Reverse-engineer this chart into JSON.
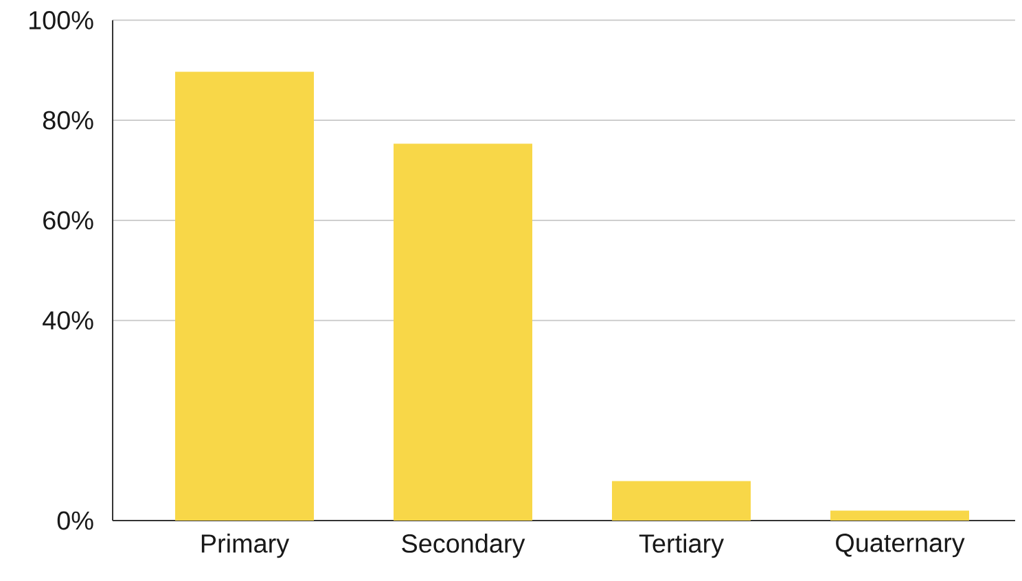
{
  "chart_data": {
    "type": "bar",
    "categories": [
      "Primary",
      "Secondary",
      "Tertiary",
      "Quaternary"
    ],
    "values": [
      89.7,
      75.3,
      7.9,
      2
    ],
    "color": "#f8d748",
    "ylim": [
      0,
      100
    ],
    "yticks": [
      {
        "value": 0,
        "label": "0%"
      },
      {
        "value": 40,
        "label": "40%"
      },
      {
        "value": 60,
        "label": "60%"
      },
      {
        "value": 80,
        "label": "80%"
      },
      {
        "value": 100,
        "label": "100%"
      }
    ],
    "grid": "y"
  }
}
